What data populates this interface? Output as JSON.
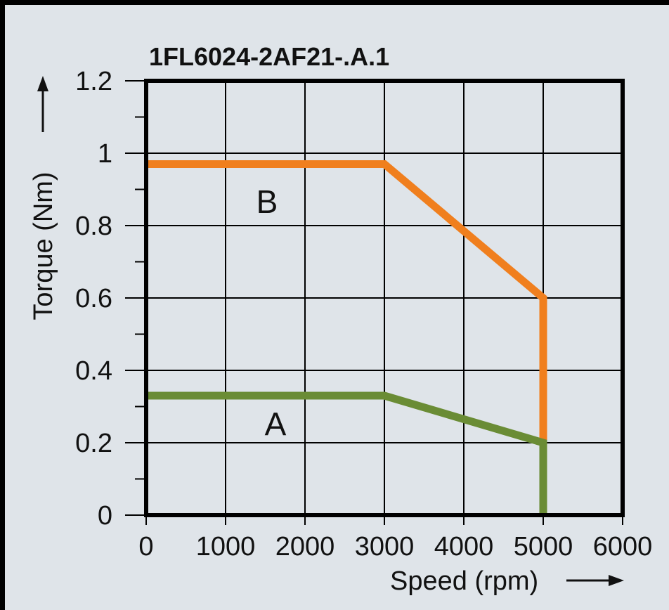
{
  "chart_data": {
    "type": "line",
    "title": "1FL6024-2AF21-.A.1",
    "xlabel": "Speed (rpm)",
    "ylabel": "Torque (Nm)",
    "xlim": [
      0,
      6000
    ],
    "ylim": [
      0,
      1.2
    ],
    "x_ticks": [
      "0",
      "1000",
      "2000",
      "3000",
      "4000",
      "5000",
      "6000"
    ],
    "y_ticks": [
      "0",
      "0.2",
      "0.4",
      "0.6",
      "0.8",
      "1",
      "1.2"
    ],
    "grid": true,
    "series": [
      {
        "name": "B",
        "color": "#f07f1e",
        "points": [
          [
            0,
            0.97
          ],
          [
            3000,
            0.97
          ],
          [
            5000,
            0.6
          ],
          [
            5000,
            0.2
          ]
        ]
      },
      {
        "name": "A",
        "color": "#6a8c35",
        "points": [
          [
            0,
            0.33
          ],
          [
            3000,
            0.33
          ],
          [
            5000,
            0.2
          ],
          [
            5000,
            0
          ]
        ]
      }
    ],
    "annotations": [
      {
        "text": "B",
        "x": 1400,
        "y": 0.87
      },
      {
        "text": "A",
        "x": 1550,
        "y": 0.25
      }
    ]
  }
}
